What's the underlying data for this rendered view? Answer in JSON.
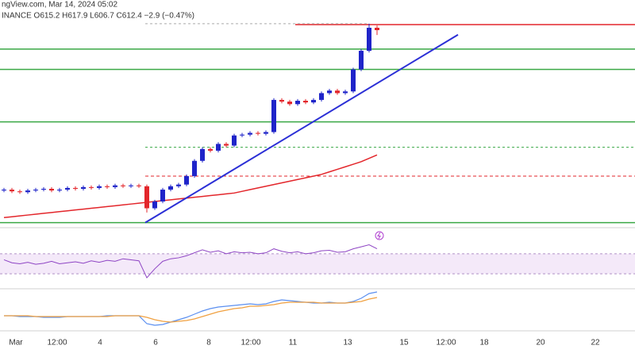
{
  "chart_data": {
    "type": "candlestick",
    "title": "ngView.com, Mar 14, 2024 05:02",
    "subtitle": "INANCE  O615.2 H617.9 L606.7 C612.4 −2.9 (−0.47%)",
    "x_labels": [
      "Mar",
      "12:00",
      "4",
      "6",
      "8",
      "12:00",
      "11",
      "13",
      "15",
      "12:00",
      "18",
      "20",
      "22"
    ],
    "ylim": [
      380,
      648
    ],
    "up_color": "#1f24c9",
    "down_color": "#e3262b",
    "open": [
      423,
      424,
      422,
      421,
      423,
      424,
      425,
      423,
      424,
      426,
      425,
      427,
      426,
      428,
      427,
      429,
      428,
      429,
      428,
      402,
      410,
      424,
      428,
      430,
      440,
      458,
      472,
      470,
      478,
      476,
      488,
      489,
      491,
      490,
      492,
      530,
      528,
      525,
      529,
      527,
      530,
      538,
      541,
      538,
      540,
      566,
      588,
      615.2
    ],
    "high": [
      426,
      426,
      424,
      425,
      426,
      427,
      427,
      426,
      428,
      428,
      429,
      429,
      430,
      430,
      431,
      431,
      431,
      431,
      430,
      412,
      426,
      430,
      432,
      442,
      460,
      474,
      474,
      480,
      480,
      490,
      491,
      493,
      493,
      494,
      532,
      532,
      530,
      531,
      531,
      532,
      540,
      543,
      543,
      542,
      568,
      590,
      620,
      617.9
    ],
    "low": [
      421,
      420,
      419,
      419,
      421,
      422,
      421,
      421,
      422,
      423,
      423,
      424,
      424,
      425,
      425,
      426,
      426,
      426,
      397,
      400,
      408,
      422,
      426,
      428,
      438,
      456,
      468,
      468,
      474,
      474,
      486,
      487,
      488,
      488,
      490,
      526,
      523,
      523,
      525,
      525,
      528,
      536,
      536,
      536,
      538,
      564,
      586,
      606.7
    ],
    "close": [
      424,
      422,
      421,
      423,
      424,
      425,
      423,
      424,
      426,
      425,
      427,
      426,
      428,
      427,
      429,
      428,
      429,
      428,
      402,
      410,
      424,
      428,
      430,
      440,
      458,
      472,
      470,
      478,
      476,
      488,
      489,
      491,
      490,
      492,
      530,
      528,
      525,
      529,
      527,
      530,
      538,
      541,
      538,
      540,
      566,
      588,
      615.2,
      612.4
    ],
    "ma": {
      "color": "#e3262b",
      "values": [
        391,
        392,
        393,
        394,
        395,
        396,
        397,
        398,
        399,
        400,
        401,
        402,
        403,
        404,
        405,
        406,
        407,
        408,
        409,
        410,
        411,
        412,
        413,
        414,
        415,
        416,
        417,
        418,
        419,
        420,
        422,
        424,
        426,
        428,
        430,
        432,
        434,
        436,
        438,
        440,
        442,
        445,
        448,
        451,
        454,
        457,
        461,
        465
      ]
    },
    "levels": [
      {
        "price": 619,
        "color": "#e3262b"
      },
      {
        "price": 620,
        "color": "#aaaaaa"
      },
      {
        "price": 590,
        "color": "#3aa845"
      },
      {
        "price": 566,
        "color": "#3aa845"
      },
      {
        "price": 504,
        "color": "#3aa845"
      },
      {
        "price": 474,
        "color": "#3aa845"
      },
      {
        "price": 440,
        "color": "#e3262b"
      },
      {
        "price": 385,
        "color": "#3aa845"
      }
    ],
    "trendline": {
      "color": "#2b2fd6",
      "values": [
        385,
        607
      ]
    },
    "rsi": {
      "color": "#8e44c4",
      "ylim": [
        0,
        100
      ],
      "band": [
        30,
        70
      ],
      "values": [
        58,
        52,
        50,
        53,
        49,
        51,
        55,
        50,
        52,
        54,
        51,
        56,
        53,
        57,
        55,
        60,
        58,
        56,
        22,
        40,
        55,
        60,
        62,
        66,
        72,
        78,
        73,
        76,
        70,
        74,
        72,
        73,
        70,
        72,
        80,
        75,
        72,
        74,
        70,
        72,
        76,
        77,
        73,
        74,
        80,
        84,
        88,
        80
      ]
    },
    "macd": {
      "ylim": [
        -15,
        35
      ],
      "series": [
        {
          "color": "#5b8ff0",
          "values": [
            2,
            2,
            1,
            1,
            1,
            0,
            0,
            0,
            1,
            1,
            1,
            1,
            1,
            2,
            2,
            2,
            2,
            2,
            -8,
            -10,
            -9,
            -6,
            -3,
            0,
            4,
            8,
            11,
            13,
            14,
            15,
            16,
            17,
            16,
            17,
            20,
            22,
            21,
            20,
            19,
            18,
            18,
            19,
            18,
            18,
            20,
            24,
            30,
            32
          ]
        },
        {
          "color": "#f0a040",
          "values": [
            2,
            2,
            2,
            2,
            1,
            1,
            1,
            1,
            1,
            1,
            1,
            1,
            1,
            1,
            2,
            2,
            2,
            2,
            0,
            -3,
            -5,
            -6,
            -5,
            -4,
            -2,
            1,
            4,
            7,
            9,
            11,
            12,
            14,
            14,
            15,
            16,
            18,
            19,
            19,
            19,
            19,
            18,
            18,
            18,
            18,
            19,
            20,
            23,
            25
          ]
        }
      ]
    }
  }
}
